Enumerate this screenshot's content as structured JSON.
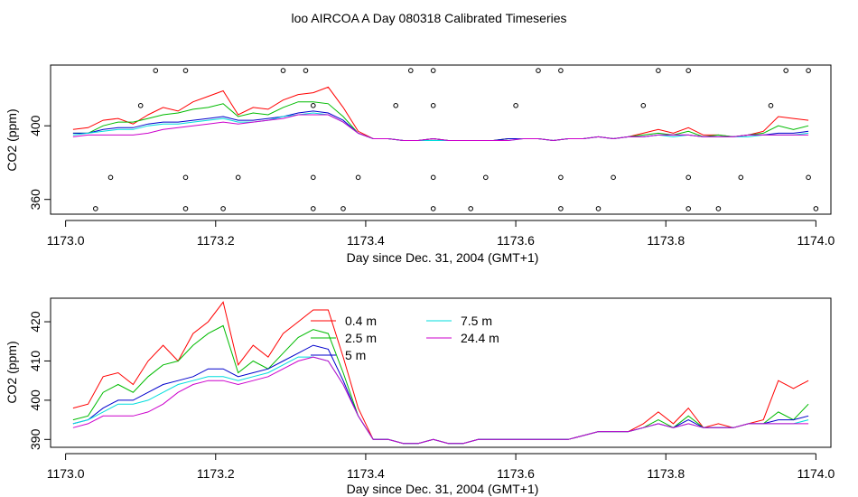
{
  "figure": {
    "title": "loo AIRCOA A  Day 080318  Calibrated Timeseries"
  },
  "chart_data": [
    {
      "type": "line",
      "panel": "top",
      "xlabel": "Day since Dec. 31, 2004 (GMT+1)",
      "ylabel": "CO2 (ppm)",
      "xlim": [
        1172.98,
        1174.02
      ],
      "ylim": [
        352,
        433
      ],
      "x_ticks": [
        1173.0,
        1173.2,
        1173.4,
        1173.6,
        1173.8,
        1174.0
      ],
      "x_tick_labels": [
        "1173.0",
        "1173.2",
        "1173.4",
        "1173.6",
        "1173.8",
        "1174.0"
      ],
      "y_ticks": [
        360,
        400
      ],
      "y_tick_labels": [
        "360",
        "400"
      ],
      "x": [
        1173.01,
        1173.03,
        1173.05,
        1173.07,
        1173.09,
        1173.11,
        1173.13,
        1173.15,
        1173.17,
        1173.19,
        1173.21,
        1173.23,
        1173.25,
        1173.27,
        1173.29,
        1173.31,
        1173.33,
        1173.35,
        1173.37,
        1173.39,
        1173.41,
        1173.43,
        1173.45,
        1173.47,
        1173.49,
        1173.51,
        1173.53,
        1173.55,
        1173.57,
        1173.59,
        1173.61,
        1173.63,
        1173.65,
        1173.67,
        1173.69,
        1173.71,
        1173.73,
        1173.75,
        1173.77,
        1173.79,
        1173.81,
        1173.83,
        1173.85,
        1173.87,
        1173.89,
        1173.91,
        1173.93,
        1173.95,
        1173.97,
        1173.99
      ],
      "series": [
        {
          "name": "0.4 m",
          "color": "#ff0000",
          "values": [
            398,
            399,
            403,
            404,
            401,
            406,
            410,
            408,
            413,
            416,
            419,
            406,
            410,
            409,
            414,
            417,
            418,
            421,
            410,
            397,
            393,
            393,
            392,
            392,
            393,
            392,
            392,
            392,
            392,
            393,
            393,
            393,
            392,
            393,
            393,
            394,
            393,
            394,
            396,
            398,
            396,
            399,
            395,
            395,
            394,
            395,
            397,
            405,
            404,
            403
          ]
        },
        {
          "name": "2.5 m",
          "color": "#00bb00",
          "values": [
            396,
            396,
            400,
            402,
            402,
            404,
            406,
            407,
            409,
            410,
            412,
            405,
            407,
            406,
            410,
            413,
            413,
            412,
            405,
            396,
            393,
            393,
            392,
            392,
            393,
            392,
            392,
            392,
            392,
            393,
            393,
            393,
            392,
            393,
            393,
            394,
            393,
            394,
            395,
            396,
            395,
            397,
            394,
            395,
            394,
            395,
            396,
            400,
            398,
            400
          ]
        },
        {
          "name": "5 m",
          "color": "#0000cc",
          "values": [
            396,
            396,
            398,
            399,
            399,
            401,
            402,
            402,
            403,
            404,
            405,
            403,
            403,
            404,
            405,
            407,
            408,
            407,
            403,
            396,
            393,
            393,
            392,
            392,
            393,
            392,
            392,
            392,
            392,
            393,
            393,
            393,
            392,
            393,
            393,
            394,
            393,
            394,
            394,
            395,
            395,
            395,
            394,
            394,
            394,
            395,
            395,
            396,
            396,
            397
          ]
        },
        {
          "name": "7.5 m",
          "color": "#00dddd",
          "values": [
            395,
            396,
            397,
            398,
            398,
            400,
            401,
            401,
            402,
            403,
            404,
            402,
            402,
            403,
            405,
            406,
            407,
            406,
            402,
            396,
            393,
            393,
            392,
            392,
            392,
            392,
            392,
            392,
            392,
            392,
            393,
            393,
            392,
            393,
            393,
            394,
            393,
            394,
            394,
            395,
            394,
            395,
            394,
            394,
            394,
            394,
            395,
            395,
            395,
            396
          ]
        },
        {
          "name": "24.4 m",
          "color": "#cc00cc",
          "values": [
            394,
            395,
            395,
            395,
            395,
            396,
            398,
            399,
            400,
            401,
            402,
            401,
            402,
            403,
            404,
            406,
            406,
            406,
            402,
            396,
            393,
            393,
            392,
            392,
            393,
            392,
            392,
            392,
            392,
            392,
            393,
            393,
            392,
            393,
            393,
            394,
            393,
            394,
            394,
            395,
            395,
            395,
            394,
            394,
            394,
            395,
            395,
            395,
            395,
            395
          ]
        }
      ],
      "markers": {
        "symbol": "open-circle",
        "points": [
          {
            "x": 1173.12,
            "y": 430
          },
          {
            "x": 1173.16,
            "y": 430
          },
          {
            "x": 1173.29,
            "y": 430
          },
          {
            "x": 1173.32,
            "y": 430
          },
          {
            "x": 1173.46,
            "y": 430
          },
          {
            "x": 1173.49,
            "y": 430
          },
          {
            "x": 1173.63,
            "y": 430
          },
          {
            "x": 1173.66,
            "y": 430
          },
          {
            "x": 1173.79,
            "y": 430
          },
          {
            "x": 1173.83,
            "y": 430
          },
          {
            "x": 1173.96,
            "y": 430
          },
          {
            "x": 1173.99,
            "y": 430
          },
          {
            "x": 1173.1,
            "y": 411
          },
          {
            "x": 1173.33,
            "y": 411
          },
          {
            "x": 1173.44,
            "y": 411
          },
          {
            "x": 1173.49,
            "y": 411
          },
          {
            "x": 1173.6,
            "y": 411
          },
          {
            "x": 1173.77,
            "y": 411
          },
          {
            "x": 1173.94,
            "y": 411
          },
          {
            "x": 1173.06,
            "y": 372
          },
          {
            "x": 1173.16,
            "y": 372
          },
          {
            "x": 1173.23,
            "y": 372
          },
          {
            "x": 1173.33,
            "y": 372
          },
          {
            "x": 1173.39,
            "y": 372
          },
          {
            "x": 1173.49,
            "y": 372
          },
          {
            "x": 1173.56,
            "y": 372
          },
          {
            "x": 1173.66,
            "y": 372
          },
          {
            "x": 1173.73,
            "y": 372
          },
          {
            "x": 1173.83,
            "y": 372
          },
          {
            "x": 1173.9,
            "y": 372
          },
          {
            "x": 1173.99,
            "y": 372
          },
          {
            "x": 1173.04,
            "y": 355
          },
          {
            "x": 1173.16,
            "y": 355
          },
          {
            "x": 1173.21,
            "y": 355
          },
          {
            "x": 1173.33,
            "y": 355
          },
          {
            "x": 1173.37,
            "y": 355
          },
          {
            "x": 1173.49,
            "y": 355
          },
          {
            "x": 1173.54,
            "y": 355
          },
          {
            "x": 1173.66,
            "y": 355
          },
          {
            "x": 1173.71,
            "y": 355
          },
          {
            "x": 1173.83,
            "y": 355
          },
          {
            "x": 1173.87,
            "y": 355
          },
          {
            "x": 1174.0,
            "y": 355
          }
        ]
      }
    },
    {
      "type": "line",
      "panel": "bottom",
      "xlabel": "Day since Dec. 31, 2004 (GMT+1)",
      "ylabel": "CO2 (ppm)",
      "xlim": [
        1172.98,
        1174.02
      ],
      "ylim": [
        388,
        426
      ],
      "x_ticks": [
        1173.0,
        1173.2,
        1173.4,
        1173.6,
        1173.8,
        1174.0
      ],
      "x_tick_labels": [
        "1173.0",
        "1173.2",
        "1173.4",
        "1173.6",
        "1173.8",
        "1174.0"
      ],
      "y_ticks": [
        390,
        400,
        410,
        420
      ],
      "y_tick_labels": [
        "390",
        "400",
        "410",
        "420"
      ],
      "legend": {
        "position": "top-center",
        "columns": 2
      },
      "x": [
        1173.01,
        1173.03,
        1173.05,
        1173.07,
        1173.09,
        1173.11,
        1173.13,
        1173.15,
        1173.17,
        1173.19,
        1173.21,
        1173.23,
        1173.25,
        1173.27,
        1173.29,
        1173.31,
        1173.33,
        1173.35,
        1173.37,
        1173.39,
        1173.41,
        1173.43,
        1173.45,
        1173.47,
        1173.49,
        1173.51,
        1173.53,
        1173.55,
        1173.57,
        1173.59,
        1173.61,
        1173.63,
        1173.65,
        1173.67,
        1173.69,
        1173.71,
        1173.73,
        1173.75,
        1173.77,
        1173.79,
        1173.81,
        1173.83,
        1173.85,
        1173.87,
        1173.89,
        1173.91,
        1173.93,
        1173.95,
        1173.97,
        1173.99
      ],
      "series": [
        {
          "name": "0.4 m",
          "color": "#ff0000",
          "values": [
            398,
            399,
            406,
            407,
            404,
            410,
            414,
            410,
            417,
            420,
            425,
            409,
            414,
            411,
            417,
            420,
            423,
            423,
            411,
            398,
            390,
            390,
            389,
            389,
            390,
            389,
            389,
            390,
            390,
            390,
            390,
            390,
            390,
            390,
            391,
            392,
            392,
            392,
            394,
            397,
            394,
            398,
            393,
            394,
            393,
            394,
            395,
            405,
            403,
            405
          ]
        },
        {
          "name": "2.5 m",
          "color": "#00bb00",
          "values": [
            395,
            396,
            402,
            404,
            402,
            406,
            409,
            410,
            414,
            417,
            419,
            407,
            410,
            408,
            412,
            416,
            418,
            417,
            407,
            396,
            390,
            390,
            389,
            389,
            390,
            389,
            389,
            390,
            390,
            390,
            390,
            390,
            390,
            390,
            391,
            392,
            392,
            392,
            393,
            395,
            393,
            396,
            393,
            393,
            393,
            394,
            394,
            397,
            395,
            399
          ]
        },
        {
          "name": "5 m",
          "color": "#0000cc",
          "values": [
            394,
            395,
            398,
            400,
            400,
            402,
            404,
            405,
            406,
            408,
            408,
            406,
            407,
            408,
            410,
            412,
            414,
            413,
            405,
            396,
            390,
            390,
            389,
            389,
            390,
            389,
            389,
            390,
            390,
            390,
            390,
            390,
            390,
            390,
            391,
            392,
            392,
            392,
            393,
            394,
            393,
            395,
            393,
            393,
            393,
            394,
            394,
            395,
            395,
            396
          ]
        },
        {
          "name": "7.5 m",
          "color": "#00dddd",
          "values": [
            394,
            395,
            397,
            399,
            399,
            400,
            402,
            404,
            405,
            406,
            406,
            405,
            406,
            407,
            409,
            411,
            411,
            410,
            404,
            396,
            390,
            390,
            389,
            389,
            390,
            389,
            389,
            390,
            390,
            390,
            390,
            390,
            390,
            390,
            391,
            392,
            392,
            392,
            393,
            394,
            393,
            394,
            393,
            393,
            393,
            394,
            394,
            394,
            394,
            395
          ]
        },
        {
          "name": "24.4 m",
          "color": "#cc00cc",
          "values": [
            393,
            394,
            396,
            396,
            396,
            397,
            399,
            402,
            404,
            405,
            405,
            404,
            405,
            406,
            408,
            410,
            411,
            410,
            404,
            396,
            390,
            390,
            389,
            389,
            390,
            389,
            389,
            390,
            390,
            390,
            390,
            390,
            390,
            390,
            391,
            392,
            392,
            392,
            393,
            394,
            393,
            394,
            393,
            393,
            393,
            394,
            394,
            394,
            394,
            394
          ]
        }
      ]
    }
  ]
}
